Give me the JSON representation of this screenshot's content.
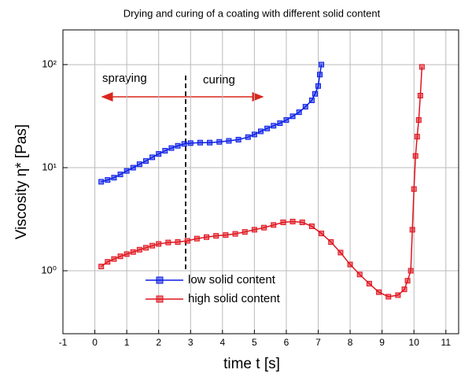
{
  "chart_data": {
    "type": "line",
    "title": "Drying and curing of a coating with different solid content",
    "x_label": "time t [s]",
    "y_label": "Viscosity η* [Pas]",
    "annotations": [
      "spraying",
      "curing"
    ],
    "xlim": [
      -1,
      11.4
    ],
    "xticks": [
      -1,
      0,
      1,
      2,
      3,
      4,
      5,
      6,
      7,
      8,
      9,
      10,
      11
    ],
    "ylim": [
      0.245,
      217
    ],
    "yticks": [
      {
        "value": 1,
        "label": "10⁰"
      },
      {
        "value": 10,
        "label": "10¹"
      },
      {
        "value": 100,
        "label": "10²"
      }
    ],
    "log_y": true,
    "grid": true,
    "legend": "lower left",
    "series": [
      {
        "name": "low solid content",
        "color": "#0a1ee6",
        "x": [
          0.2,
          0.4,
          0.6,
          0.8,
          1.0,
          1.2,
          1.4,
          1.6,
          1.8,
          2.0,
          2.2,
          2.4,
          2.6,
          2.8,
          3.0,
          3.3,
          3.6,
          3.9,
          4.2,
          4.5,
          4.8,
          5.0,
          5.2,
          5.4,
          5.6,
          5.8,
          6.0,
          6.2,
          6.4,
          6.6,
          6.8,
          6.9,
          7.0,
          7.05,
          7.1
        ],
        "values": [
          7.3,
          7.6,
          8.0,
          8.6,
          9.3,
          10.0,
          10.8,
          11.6,
          12.6,
          13.6,
          14.6,
          15.5,
          16.3,
          17.0,
          17.3,
          17.5,
          17.5,
          17.8,
          18.2,
          18.7,
          19.8,
          21,
          22.5,
          24,
          25.5,
          27,
          29,
          31.5,
          34.5,
          39,
          45,
          52,
          62,
          80,
          100
        ]
      },
      {
        "name": "high solid content",
        "color": "#e0141e",
        "x": [
          0.2,
          0.4,
          0.6,
          0.8,
          1.0,
          1.2,
          1.4,
          1.6,
          1.8,
          2.0,
          2.3,
          2.6,
          2.9,
          3.2,
          3.5,
          3.8,
          4.1,
          4.4,
          4.7,
          5.0,
          5.3,
          5.6,
          5.9,
          6.2,
          6.5,
          6.8,
          7.1,
          7.4,
          7.7,
          8.0,
          8.3,
          8.6,
          8.9,
          9.2,
          9.5,
          9.7,
          9.8,
          9.9,
          9.95,
          10.0,
          10.05,
          10.1,
          10.15,
          10.2,
          10.25
        ],
        "values": [
          1.1,
          1.22,
          1.3,
          1.38,
          1.45,
          1.52,
          1.6,
          1.67,
          1.75,
          1.82,
          1.88,
          1.9,
          1.95,
          2.05,
          2.12,
          2.18,
          2.22,
          2.28,
          2.38,
          2.5,
          2.62,
          2.78,
          2.95,
          3.0,
          2.95,
          2.7,
          2.3,
          1.9,
          1.5,
          1.15,
          0.92,
          0.75,
          0.62,
          0.56,
          0.58,
          0.66,
          0.8,
          1.0,
          2.5,
          6.2,
          13,
          20,
          29,
          50,
          95
        ]
      }
    ]
  }
}
